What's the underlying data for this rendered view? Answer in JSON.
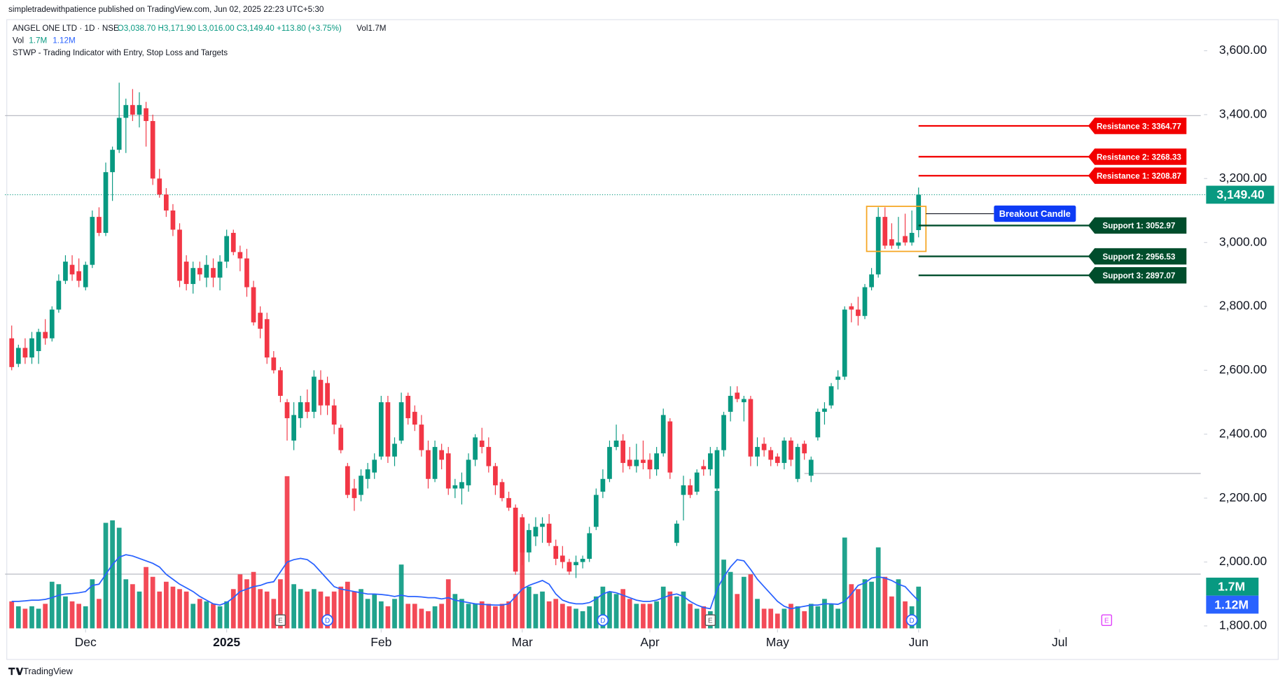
{
  "page": {
    "byline": "simpletradewithpatience published on TradingView.com, Jun 02, 2025 22:23 UTC+5:30",
    "footer": "TradingView"
  },
  "chart_data": {
    "type": "candlestick",
    "symbol": "ANGEL ONE LTD · 1D · NSE",
    "ohlc_text": "O3,038.70  H3,171.90  L3,016.00  C3,149.40  +113.80 (+3.75%)",
    "vol_text": "Vol1.7M",
    "vol_legend": {
      "name": "Vol",
      "values": [
        "1.7M",
        "1.12M"
      ]
    },
    "indicator": "STWP - Trading Indicator with Entry, Stop Loss and Targets",
    "up_color": "#089981",
    "down_color": "#f23645",
    "ma_color": "#2962ff",
    "candles": [
      [
        2700,
        2740,
        2600,
        2610
      ],
      [
        2620,
        2680,
        2610,
        2670
      ],
      [
        2670,
        2700,
        2620,
        2640
      ],
      [
        2640,
        2720,
        2620,
        2700
      ],
      [
        2660,
        2730,
        2620,
        2720
      ],
      [
        2720,
        2760,
        2680,
        2700
      ],
      [
        2700,
        2800,
        2690,
        2790
      ],
      [
        2790,
        2900,
        2780,
        2880
      ],
      [
        2880,
        2960,
        2870,
        2940
      ],
      [
        2930,
        2960,
        2880,
        2900
      ],
      [
        2910,
        2950,
        2860,
        2880
      ],
      [
        2860,
        2940,
        2850,
        2930
      ],
      [
        2930,
        3100,
        2920,
        3080
      ],
      [
        3080,
        3110,
        3020,
        3030
      ],
      [
        3030,
        3250,
        3020,
        3220
      ],
      [
        3220,
        3300,
        3130,
        3290
      ],
      [
        3290,
        3500,
        3280,
        3390
      ],
      [
        3390,
        3450,
        3280,
        3430
      ],
      [
        3430,
        3480,
        3380,
        3400
      ],
      [
        3400,
        3470,
        3360,
        3430
      ],
      [
        3420,
        3440,
        3300,
        3380
      ],
      [
        3380,
        3400,
        3180,
        3200
      ],
      [
        3200,
        3230,
        3140,
        3150
      ],
      [
        3150,
        3170,
        3080,
        3100
      ],
      [
        3100,
        3120,
        3020,
        3040
      ],
      [
        3040,
        3060,
        2860,
        2880
      ],
      [
        2940,
        2960,
        2850,
        2870
      ],
      [
        2870,
        2940,
        2840,
        2920
      ],
      [
        2920,
        2940,
        2880,
        2900
      ],
      [
        2890,
        2960,
        2860,
        2930
      ],
      [
        2920,
        2950,
        2860,
        2890
      ],
      [
        2890,
        2960,
        2850,
        2940
      ],
      [
        2940,
        3040,
        2920,
        3020
      ],
      [
        3030,
        3040,
        2960,
        2970
      ],
      [
        2970,
        2990,
        2910,
        2950
      ],
      [
        2950,
        2980,
        2830,
        2860
      ],
      [
        2860,
        2880,
        2740,
        2750
      ],
      [
        2780,
        2800,
        2700,
        2730
      ],
      [
        2760,
        2780,
        2620,
        2640
      ],
      [
        2640,
        2660,
        2590,
        2600
      ],
      [
        2600,
        2610,
        2500,
        2520
      ],
      [
        2500,
        2510,
        2380,
        2450
      ],
      [
        2380,
        2500,
        2350,
        2460
      ],
      [
        2450,
        2520,
        2420,
        2500
      ],
      [
        2500,
        2540,
        2450,
        2470
      ],
      [
        2470,
        2600,
        2450,
        2580
      ],
      [
        2570,
        2600,
        2460,
        2490
      ],
      [
        2560,
        2580,
        2460,
        2490
      ],
      [
        2490,
        2510,
        2400,
        2430
      ],
      [
        2420,
        2430,
        2340,
        2350
      ],
      [
        2300,
        2310,
        2200,
        2210
      ],
      [
        2230,
        2260,
        2160,
        2200
      ],
      [
        2210,
        2290,
        2190,
        2270
      ],
      [
        2260,
        2310,
        2230,
        2290
      ],
      [
        2280,
        2340,
        2260,
        2320
      ],
      [
        2330,
        2520,
        2320,
        2500
      ],
      [
        2500,
        2520,
        2310,
        2330
      ],
      [
        2330,
        2390,
        2300,
        2370
      ],
      [
        2380,
        2530,
        2370,
        2500
      ],
      [
        2520,
        2530,
        2430,
        2450
      ],
      [
        2470,
        2490,
        2410,
        2430
      ],
      [
        2430,
        2460,
        2330,
        2350
      ],
      [
        2350,
        2380,
        2230,
        2260
      ],
      [
        2260,
        2380,
        2250,
        2360
      ],
      [
        2350,
        2370,
        2290,
        2320
      ],
      [
        2340,
        2360,
        2210,
        2230
      ],
      [
        2230,
        2260,
        2200,
        2240
      ],
      [
        2230,
        2280,
        2180,
        2250
      ],
      [
        2240,
        2340,
        2220,
        2320
      ],
      [
        2320,
        2400,
        2300,
        2390
      ],
      [
        2380,
        2420,
        2340,
        2360
      ],
      [
        2360,
        2390,
        2280,
        2300
      ],
      [
        2300,
        2310,
        2210,
        2240
      ],
      [
        2250,
        2260,
        2190,
        2200
      ],
      [
        2200,
        2220,
        2160,
        2170
      ],
      [
        2170,
        2180,
        1960,
        1970
      ],
      [
        2140,
        2150,
        1990,
        2030
      ],
      [
        2030,
        2120,
        2000,
        2100
      ],
      [
        2080,
        2140,
        2050,
        2110
      ],
      [
        2110,
        2140,
        2060,
        2120
      ],
      [
        2120,
        2150,
        2050,
        2060
      ],
      [
        2050,
        2070,
        1990,
        2010
      ],
      [
        2020,
        2050,
        1980,
        2000
      ],
      [
        2000,
        2010,
        1960,
        1970
      ],
      [
        1990,
        2020,
        1950,
        2000
      ],
      [
        2000,
        2020,
        1980,
        2010
      ],
      [
        2010,
        2110,
        2000,
        2090
      ],
      [
        2110,
        2230,
        2100,
        2210
      ],
      [
        2220,
        2290,
        2200,
        2260
      ],
      [
        2260,
        2380,
        2250,
        2360
      ],
      [
        2360,
        2430,
        2350,
        2380
      ],
      [
        2380,
        2400,
        2280,
        2310
      ],
      [
        2320,
        2360,
        2290,
        2300
      ],
      [
        2300,
        2370,
        2280,
        2320
      ],
      [
        2320,
        2380,
        2290,
        2310
      ],
      [
        2320,
        2340,
        2260,
        2290
      ],
      [
        2290,
        2360,
        2270,
        2340
      ],
      [
        2340,
        2480,
        2330,
        2460
      ],
      [
        2440,
        2450,
        2260,
        2280
      ],
      [
        2060,
        2130,
        2050,
        2120
      ],
      [
        2210,
        2270,
        2130,
        2240
      ],
      [
        2240,
        2260,
        2200,
        2210
      ],
      [
        2220,
        2290,
        2210,
        2280
      ],
      [
        2300,
        2320,
        2270,
        2290
      ],
      [
        2290,
        2360,
        2270,
        2340
      ],
      [
        2230,
        2360,
        2220,
        2350
      ],
      [
        2350,
        2470,
        2330,
        2460
      ],
      [
        2470,
        2550,
        2440,
        2520
      ],
      [
        2530,
        2550,
        2500,
        2510
      ],
      [
        2500,
        2520,
        2440,
        2510
      ],
      [
        2510,
        2520,
        2300,
        2330
      ],
      [
        2330,
        2390,
        2300,
        2360
      ],
      [
        2370,
        2390,
        2330,
        2350
      ],
      [
        2350,
        2360,
        2300,
        2320
      ],
      [
        2330,
        2340,
        2300,
        2310
      ],
      [
        2310,
        2390,
        2290,
        2380
      ],
      [
        2380,
        2390,
        2300,
        2320
      ],
      [
        2260,
        2370,
        2250,
        2360
      ],
      [
        2370,
        2380,
        2320,
        2340
      ],
      [
        2270,
        2330,
        2250,
        2320
      ],
      [
        2390,
        2480,
        2380,
        2470
      ],
      [
        2470,
        2500,
        2430,
        2480
      ],
      [
        2490,
        2560,
        2480,
        2550
      ],
      [
        2570,
        2600,
        2540,
        2580
      ],
      [
        2580,
        2800,
        2570,
        2790
      ],
      [
        2800,
        2810,
        2750,
        2790
      ],
      [
        2790,
        2830,
        2740,
        2770
      ],
      [
        2770,
        2870,
        2760,
        2860
      ],
      [
        2860,
        2920,
        2850,
        2900
      ],
      [
        2900,
        3110,
        2890,
        3080
      ],
      [
        3080,
        3110,
        2980,
        2990
      ],
      [
        3010,
        3060,
        2980,
        2990
      ],
      [
        2990,
        3080,
        2980,
        3000
      ],
      [
        3020,
        3090,
        2990,
        3000
      ],
      [
        3000,
        3100,
        2990,
        3030
      ],
      [
        3038.7,
        3171.9,
        3016,
        3149.4
      ]
    ],
    "volume": [
      1.1,
      0.9,
      0.8,
      0.9,
      0.8,
      1.0,
      1.9,
      1.8,
      1.3,
      1.1,
      1.0,
      0.9,
      2.0,
      1.2,
      4.3,
      4.4,
      4.1,
      2.0,
      1.8,
      1.5,
      2.5,
      2.1,
      1.5,
      1.9,
      1.7,
      1.6,
      1.5,
      1.0,
      1.2,
      1.1,
      1.0,
      0.9,
      1.1,
      1.6,
      2.2,
      2.0,
      2.3,
      1.6,
      1.5,
      1.2,
      2.0,
      6.2,
      1.8,
      1.6,
      1.5,
      1.6,
      1.5,
      1.3,
      1.5,
      1.7,
      1.9,
      1.5,
      1.6,
      1.2,
      1.4,
      1.1,
      0.9,
      1.2,
      2.6,
      1.0,
      1.0,
      0.8,
      0.7,
      0.9,
      1.0,
      2.0,
      1.4,
      1.2,
      1.0,
      1.0,
      1.1,
      1.0,
      0.9,
      1.0,
      1.1,
      1.4,
      4.4,
      1.7,
      1.4,
      1.5,
      1.1,
      1.2,
      1.0,
      0.9,
      0.8,
      0.7,
      0.9,
      1.3,
      1.7,
      1.5,
      1.4,
      1.6,
      1.2,
      1.0,
      1.0,
      1.0,
      1.1,
      1.7,
      1.5,
      1.3,
      1.5,
      1.0,
      0.8,
      0.9,
      0.7,
      5.6,
      2.8,
      2.3,
      1.4,
      2.1,
      2.2,
      1.2,
      0.8,
      0.8,
      0.6,
      0.8,
      1.0,
      0.9,
      0.7,
      1.0,
      0.9,
      1.2,
      1.0,
      0.8,
      3.7,
      1.8,
      1.6,
      2.0,
      1.9,
      3.3,
      2.1,
      1.3,
      2.0,
      1.1,
      0.9,
      1.7
    ],
    "volume_ma": [
      1.1,
      1.1,
      1.12,
      1.15,
      1.15,
      1.18,
      1.25,
      1.35,
      1.4,
      1.42,
      1.45,
      1.5,
      1.75,
      1.8,
      2.2,
      2.6,
      2.9,
      3.0,
      2.95,
      2.85,
      2.75,
      2.65,
      2.5,
      2.2,
      2.0,
      1.8,
      1.65,
      1.5,
      1.3,
      1.15,
      1.0,
      0.95,
      1.05,
      1.25,
      1.5,
      1.6,
      1.7,
      1.75,
      1.85,
      1.9,
      2.3,
      2.7,
      2.8,
      2.85,
      2.8,
      2.6,
      2.3,
      2.0,
      1.7,
      1.6,
      1.55,
      1.5,
      1.45,
      1.4,
      1.4,
      1.38,
      1.35,
      1.3,
      1.35,
      1.3,
      1.3,
      1.28,
      1.25,
      1.25,
      1.2,
      1.25,
      1.15,
      1.1,
      1.05,
      1.0,
      0.98,
      0.96,
      0.95,
      0.95,
      1.0,
      1.3,
      1.6,
      1.75,
      1.85,
      1.95,
      1.8,
      1.4,
      1.15,
      1.05,
      1.0,
      1.0,
      1.05,
      1.2,
      1.4,
      1.5,
      1.45,
      1.35,
      1.25,
      1.15,
      1.1,
      1.1,
      1.15,
      1.25,
      1.35,
      1.4,
      1.3,
      1.1,
      0.95,
      0.85,
      0.8,
      1.6,
      2.1,
      2.5,
      2.8,
      2.75,
      2.4,
      2.0,
      1.7,
      1.4,
      1.1,
      0.9,
      0.8,
      0.85,
      0.9,
      0.95,
      0.95,
      1.0,
      1.0,
      0.98,
      1.1,
      1.4,
      1.75,
      1.85,
      2.05,
      2.1,
      2.05,
      1.95,
      1.8,
      1.7,
      1.4,
      1.12
    ],
    "xlim": [
      -1,
      177
    ],
    "xticks": [
      {
        "value": 11,
        "label": "Dec"
      },
      {
        "value": 32,
        "label": "2025"
      },
      {
        "value": 55,
        "label": "Feb"
      },
      {
        "value": 76,
        "label": "Mar"
      },
      {
        "value": 95,
        "label": "Apr"
      },
      {
        "value": 114,
        "label": "May"
      },
      {
        "value": 135,
        "label": "Jun"
      },
      {
        "value": 156,
        "label": "Jul"
      }
    ],
    "ylim": [
      1800,
      3600
    ],
    "yticks": [
      {
        "value": 3600,
        "label": "3,600.00"
      },
      {
        "value": 3400,
        "label": "3,400.00"
      },
      {
        "value": 3200,
        "label": "3,200.00"
      },
      {
        "value": 3000,
        "label": "3,000.00"
      },
      {
        "value": 2800,
        "label": "2,800.00"
      },
      {
        "value": 2600,
        "label": "2,600.00"
      },
      {
        "value": 2400,
        "label": "2,400.00"
      },
      {
        "value": 2200,
        "label": "2,200.00"
      },
      {
        "value": 2000,
        "label": "2,000.00"
      },
      {
        "value": 1800,
        "label": "1,800.00"
      }
    ],
    "volume_ylim": [
      0,
      6.6
    ],
    "last_price": {
      "value": 3149.4,
      "label": "3,149.40"
    },
    "volume_tags": [
      {
        "value": 1.7,
        "label": "1.7M",
        "color": "#089981"
      },
      {
        "value": 1.12,
        "label": "1.12M",
        "color": "#2962ff"
      }
    ],
    "levels": [
      {
        "label": "Resistance 3: 3364.77",
        "value": 3364.77,
        "color": "#f20000"
      },
      {
        "label": "Resistance 2: 3268.33",
        "value": 3268.33,
        "color": "#f20000"
      },
      {
        "label": "Resistance 1: 3208.87",
        "value": 3208.87,
        "color": "#f20000"
      },
      {
        "label": "Support 1: 3052.97",
        "value": 3052.97,
        "color": "#004d2c"
      },
      {
        "label": "Support 2: 2956.53",
        "value": 2956.53,
        "color": "#004d2c"
      },
      {
        "label": "Support 3: 2897.07",
        "value": 2897.07,
        "color": "#004d2c"
      }
    ],
    "hlines": [
      {
        "value": 3397,
        "from": -1,
        "to": 177
      },
      {
        "value": 2277,
        "from": 118,
        "to": 177
      },
      {
        "value": 1962,
        "from": -1,
        "to": 177
      }
    ],
    "box": {
      "from": 128,
      "to": 135,
      "top": 3113,
      "bottom": 2972,
      "color": "#f5a623"
    },
    "breakout": {
      "label": "Breakout Candle",
      "value": 3090,
      "color": "#0d3bf5"
    },
    "events": [
      {
        "label": "E",
        "at": 40
      },
      {
        "label": "D",
        "at": 47
      },
      {
        "label": "D",
        "at": 88
      },
      {
        "label": "E",
        "at": 104
      },
      {
        "label": "D",
        "at": 134
      },
      {
        "label": "E",
        "at": 163
      }
    ]
  }
}
